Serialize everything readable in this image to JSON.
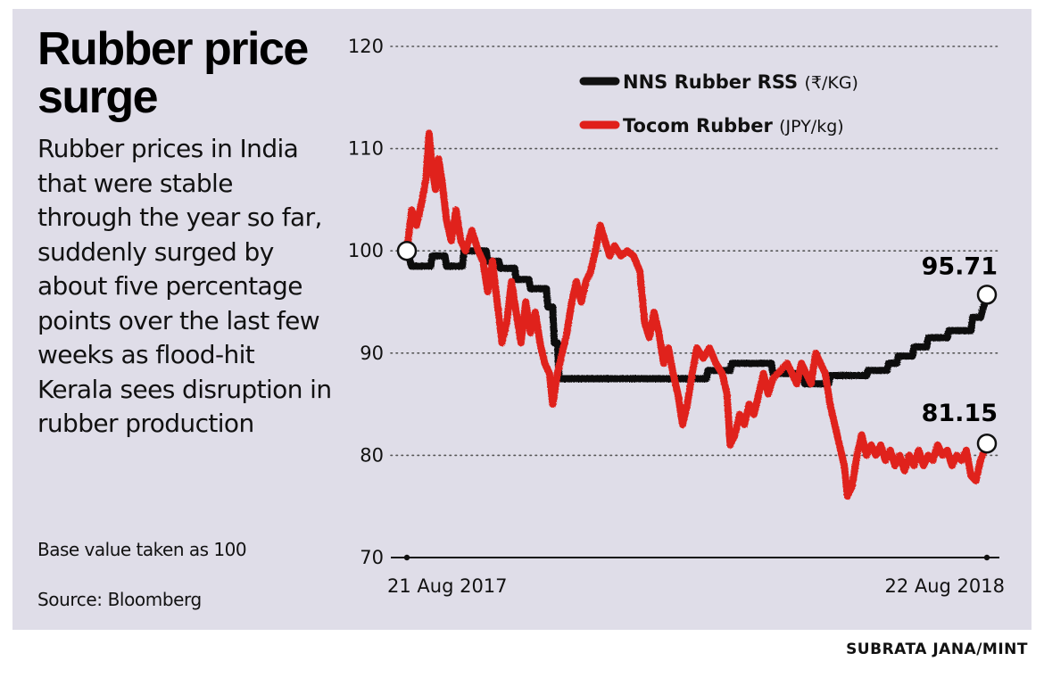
{
  "title": "Rubber price surge",
  "description": "Rubber prices in India that were stable through the year so far, suddenly surged by about five percentage points over the last few weeks as flood-hit Kerala sees disruption in rubber production",
  "note": "Base value taken as 100",
  "source": "Source: Bloomberg",
  "credit": "SUBRATA JANA/MINT",
  "chart_data": {
    "type": "line",
    "ylim": [
      70,
      120
    ],
    "yticks": [
      70,
      80,
      90,
      100,
      110,
      120
    ],
    "xlim": [
      "2017-08-21",
      "2018-08-22"
    ],
    "x_tick_labels": [
      "21 Aug 2017",
      "22 Aug 2018"
    ],
    "grid": true,
    "legend_position": "top-right",
    "series": [
      {
        "name": "NNS Rubber RSS",
        "unit": "(₹/KG)",
        "color": "#111111",
        "end_label": "95.71",
        "points": [
          [
            "2017-08-21",
            100
          ],
          [
            "2017-08-24",
            98.5
          ],
          [
            "2017-09-05",
            98.5
          ],
          [
            "2017-09-06",
            99.5
          ],
          [
            "2017-09-14",
            99.5
          ],
          [
            "2017-09-15",
            98.5
          ],
          [
            "2017-09-25",
            98.5
          ],
          [
            "2017-09-26",
            100
          ],
          [
            "2017-10-10",
            100
          ],
          [
            "2017-10-11",
            99
          ],
          [
            "2017-10-18",
            99
          ],
          [
            "2017-10-19",
            98.3
          ],
          [
            "2017-10-28",
            98.3
          ],
          [
            "2017-10-29",
            97.2
          ],
          [
            "2017-11-06",
            97.2
          ],
          [
            "2017-11-07",
            96.3
          ],
          [
            "2017-11-17",
            96.3
          ],
          [
            "2017-11-18",
            94.5
          ],
          [
            "2017-11-21",
            94.5
          ],
          [
            "2017-11-22",
            91
          ],
          [
            "2017-11-24",
            91
          ],
          [
            "2017-11-25",
            87.5
          ],
          [
            "2018-02-26",
            87.5
          ],
          [
            "2018-02-27",
            88.3
          ],
          [
            "2018-03-13",
            88.3
          ],
          [
            "2018-03-14",
            89
          ],
          [
            "2018-04-08",
            89
          ],
          [
            "2018-04-09",
            88
          ],
          [
            "2018-04-28",
            88
          ],
          [
            "2018-04-29",
            87
          ],
          [
            "2018-05-14",
            87
          ],
          [
            "2018-05-15",
            87.8
          ],
          [
            "2018-06-07",
            87.8
          ],
          [
            "2018-06-08",
            88.3
          ],
          [
            "2018-06-20",
            88.3
          ],
          [
            "2018-06-21",
            89
          ],
          [
            "2018-06-26",
            89
          ],
          [
            "2018-06-27",
            89.7
          ],
          [
            "2018-07-06",
            89.7
          ],
          [
            "2018-07-07",
            90.6
          ],
          [
            "2018-07-15",
            90.6
          ],
          [
            "2018-07-16",
            91.5
          ],
          [
            "2018-07-28",
            91.5
          ],
          [
            "2018-07-29",
            92.2
          ],
          [
            "2018-08-12",
            92.2
          ],
          [
            "2018-08-13",
            93.5
          ],
          [
            "2018-08-18",
            93.5
          ],
          [
            "2018-08-22",
            95.71
          ]
        ]
      },
      {
        "name": "Tocom Rubber",
        "unit": "(JPY/kg)",
        "color": "#e0201b",
        "end_label": "81.15",
        "points": [
          [
            "2017-08-21",
            100
          ],
          [
            "2017-08-24",
            104
          ],
          [
            "2017-08-27",
            102.5
          ],
          [
            "2017-08-30",
            104.5
          ],
          [
            "2017-09-02",
            107
          ],
          [
            "2017-09-04",
            111.5
          ],
          [
            "2017-09-06",
            108
          ],
          [
            "2017-09-08",
            106
          ],
          [
            "2017-09-10",
            109
          ],
          [
            "2017-09-12",
            107
          ],
          [
            "2017-09-15",
            103
          ],
          [
            "2017-09-18",
            101
          ],
          [
            "2017-09-21",
            104
          ],
          [
            "2017-09-24",
            101
          ],
          [
            "2017-09-27",
            100
          ],
          [
            "2017-10-01",
            102
          ],
          [
            "2017-10-05",
            100
          ],
          [
            "2017-10-08",
            99
          ],
          [
            "2017-10-11",
            96
          ],
          [
            "2017-10-14",
            99
          ],
          [
            "2017-10-17",
            95
          ],
          [
            "2017-10-20",
            91
          ],
          [
            "2017-10-23",
            93
          ],
          [
            "2017-10-26",
            97
          ],
          [
            "2017-10-29",
            94
          ],
          [
            "2017-11-01",
            91
          ],
          [
            "2017-11-04",
            95
          ],
          [
            "2017-11-07",
            92
          ],
          [
            "2017-11-10",
            94
          ],
          [
            "2017-11-13",
            91
          ],
          [
            "2017-11-16",
            89
          ],
          [
            "2017-11-19",
            88
          ],
          [
            "2017-11-21",
            85
          ],
          [
            "2017-11-24",
            88
          ],
          [
            "2017-11-27",
            90
          ],
          [
            "2017-11-30",
            92
          ],
          [
            "2017-12-03",
            95
          ],
          [
            "2017-12-06",
            97
          ],
          [
            "2017-12-09",
            95
          ],
          [
            "2017-12-12",
            97
          ],
          [
            "2017-12-15",
            98
          ],
          [
            "2017-12-18",
            100
          ],
          [
            "2017-12-21",
            102.5
          ],
          [
            "2017-12-24",
            101
          ],
          [
            "2017-12-27",
            99.5
          ],
          [
            "2017-12-30",
            100.5
          ],
          [
            "2018-01-03",
            99.5
          ],
          [
            "2018-01-07",
            100
          ],
          [
            "2018-01-11",
            99.5
          ],
          [
            "2018-01-15",
            98
          ],
          [
            "2018-01-18",
            93
          ],
          [
            "2018-01-21",
            91.5
          ],
          [
            "2018-01-24",
            94
          ],
          [
            "2018-01-27",
            92
          ],
          [
            "2018-01-30",
            89
          ],
          [
            "2018-02-02",
            90.5
          ],
          [
            "2018-02-05",
            88
          ],
          [
            "2018-02-08",
            86
          ],
          [
            "2018-02-11",
            83
          ],
          [
            "2018-02-14",
            85
          ],
          [
            "2018-02-17",
            88
          ],
          [
            "2018-02-20",
            90.5
          ],
          [
            "2018-02-24",
            89.5
          ],
          [
            "2018-02-28",
            90.5
          ],
          [
            "2018-03-04",
            89
          ],
          [
            "2018-03-08",
            88
          ],
          [
            "2018-03-11",
            86
          ],
          [
            "2018-03-13",
            81
          ],
          [
            "2018-03-16",
            82
          ],
          [
            "2018-03-19",
            84
          ],
          [
            "2018-03-22",
            83
          ],
          [
            "2018-03-25",
            85
          ],
          [
            "2018-03-28",
            84
          ],
          [
            "2018-03-31",
            86
          ],
          [
            "2018-04-03",
            88
          ],
          [
            "2018-04-06",
            86
          ],
          [
            "2018-04-09",
            87.5
          ],
          [
            "2018-04-12",
            88
          ],
          [
            "2018-04-15",
            88.5
          ],
          [
            "2018-04-18",
            89
          ],
          [
            "2018-04-21",
            88
          ],
          [
            "2018-04-24",
            87
          ],
          [
            "2018-04-27",
            89
          ],
          [
            "2018-04-30",
            88
          ],
          [
            "2018-05-03",
            87
          ],
          [
            "2018-05-06",
            90
          ],
          [
            "2018-05-09",
            89
          ],
          [
            "2018-05-12",
            88
          ],
          [
            "2018-05-15",
            85
          ],
          [
            "2018-05-18",
            83
          ],
          [
            "2018-05-21",
            81
          ],
          [
            "2018-05-24",
            79
          ],
          [
            "2018-05-26",
            76
          ],
          [
            "2018-05-29",
            77
          ],
          [
            "2018-06-01",
            80
          ],
          [
            "2018-06-04",
            82
          ],
          [
            "2018-06-07",
            80
          ],
          [
            "2018-06-10",
            81
          ],
          [
            "2018-06-13",
            80
          ],
          [
            "2018-06-16",
            81
          ],
          [
            "2018-06-19",
            79.5
          ],
          [
            "2018-06-22",
            80.5
          ],
          [
            "2018-06-25",
            79
          ],
          [
            "2018-06-28",
            80
          ],
          [
            "2018-07-01",
            78.5
          ],
          [
            "2018-07-04",
            80
          ],
          [
            "2018-07-07",
            79
          ],
          [
            "2018-07-10",
            80.5
          ],
          [
            "2018-07-13",
            79
          ],
          [
            "2018-07-16",
            80
          ],
          [
            "2018-07-19",
            79.5
          ],
          [
            "2018-07-22",
            81
          ],
          [
            "2018-07-25",
            80
          ],
          [
            "2018-07-28",
            80.5
          ],
          [
            "2018-07-31",
            79
          ],
          [
            "2018-08-03",
            80
          ],
          [
            "2018-08-06",
            79.5
          ],
          [
            "2018-08-09",
            80.5
          ],
          [
            "2018-08-12",
            78
          ],
          [
            "2018-08-15",
            77.5
          ],
          [
            "2018-08-18",
            79.5
          ],
          [
            "2018-08-22",
            81.15
          ]
        ]
      }
    ]
  }
}
